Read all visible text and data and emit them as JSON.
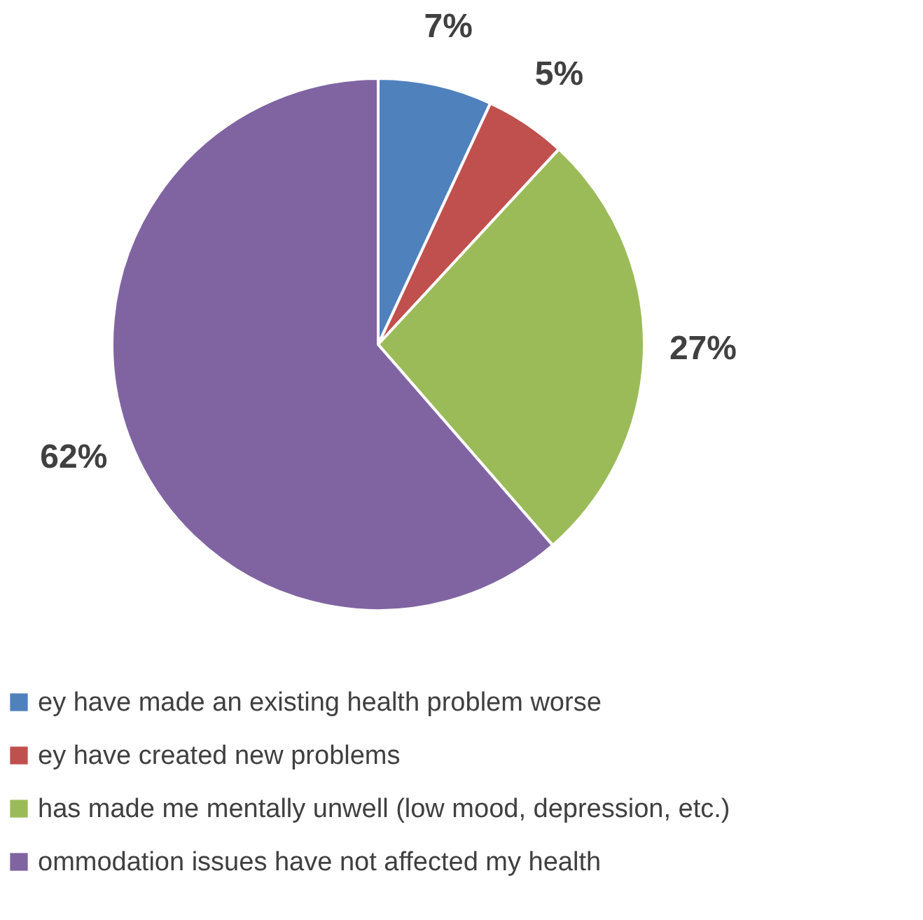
{
  "chart_data": {
    "type": "pie",
    "categories": [
      "ey have made an existing health problem worse",
      "ey have created new problems",
      "has made me mentally unwell (low mood, depression, etc.)",
      "ommodation issues have not affected my health"
    ],
    "values": [
      7,
      5,
      27,
      62
    ],
    "colors": [
      "#4f81bd",
      "#c0504d",
      "#9bbb59",
      "#8064a2"
    ],
    "value_labels": [
      "7%",
      "5%",
      "27%",
      "62%"
    ],
    "legend": "bottom"
  }
}
